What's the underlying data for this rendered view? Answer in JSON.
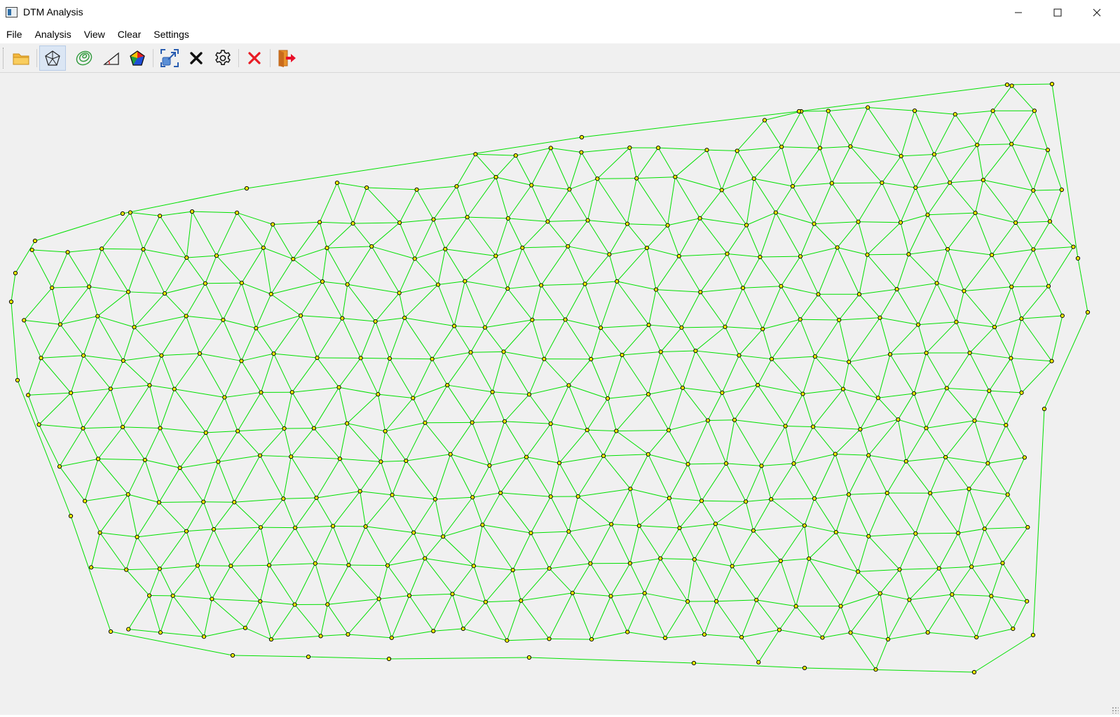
{
  "window": {
    "title": "DTM Analysis",
    "controls": [
      "minimize",
      "maximize",
      "close"
    ]
  },
  "menu": [
    {
      "label": "File"
    },
    {
      "label": "Analysis"
    },
    {
      "label": "View"
    },
    {
      "label": "Clear"
    },
    {
      "label": "Settings"
    }
  ],
  "toolbar": [
    {
      "id": "open",
      "icon": "folder-icon"
    },
    {
      "id": "triangulation",
      "icon": "triangulation-icon",
      "active": true
    },
    {
      "id": "contours",
      "icon": "contour-icon"
    },
    {
      "id": "slope",
      "icon": "slope-icon"
    },
    {
      "id": "aspect",
      "icon": "aspect-icon"
    },
    {
      "id": "zoom-extent",
      "icon": "zoom-extent-icon"
    },
    {
      "id": "clear",
      "icon": "clear-icon"
    },
    {
      "id": "settings",
      "icon": "gear-icon"
    },
    {
      "id": "clear-all",
      "icon": "red-x-icon"
    },
    {
      "id": "exit",
      "icon": "exit-icon"
    }
  ],
  "colors": {
    "edge": "#00e000",
    "point_fill": "#ffff00",
    "point_stroke": "#000000",
    "canvas": "#f0f0f0"
  }
}
